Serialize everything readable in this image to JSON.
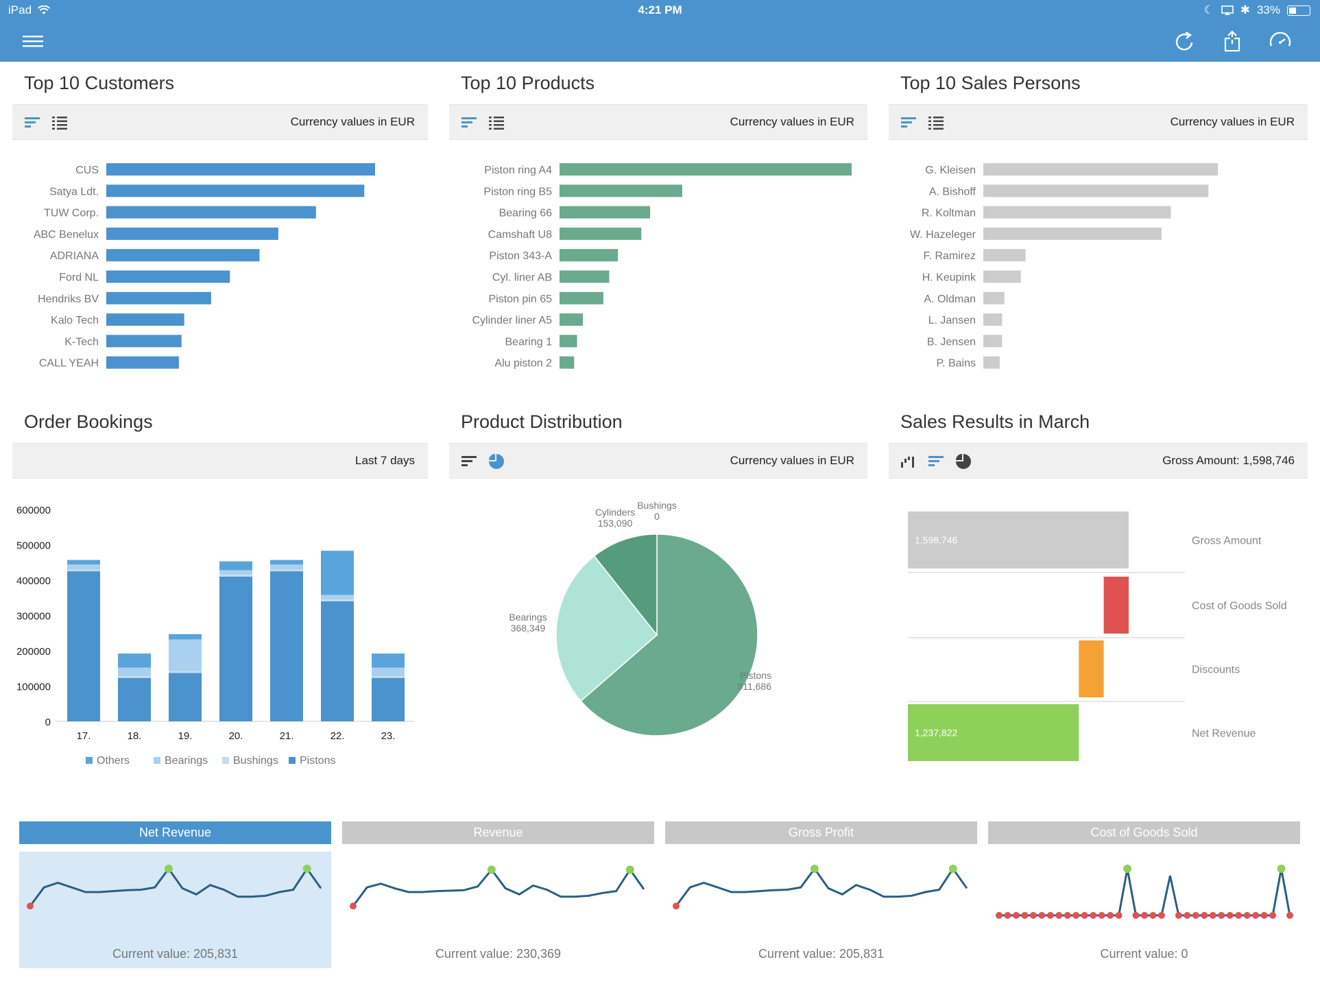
{
  "statusbar": {
    "device": "iPad",
    "time": "4:21 PM",
    "battery": "33%"
  },
  "nav": {
    "menu_icon": "hamburger-menu-icon",
    "refresh_icon": "refresh-icon",
    "share_icon": "share-icon",
    "speed_icon": "speedometer-icon"
  },
  "colors": {
    "blue": "#4a93cf",
    "green": "#6aaa8f",
    "gray": "#cccccc",
    "red": "#e05252",
    "orange": "#f5a133",
    "lime": "#8ed15a"
  },
  "customers": {
    "title": "Top 10 Customers",
    "note": "Currency values in EUR",
    "chart_data": {
      "type": "bar",
      "categories": [
        "CUS",
        "Satya Ldt.",
        "TUW Corp.",
        "ABC Benelux",
        "ADRIANA",
        "Ford NL",
        "Hendriks BV",
        "Kalo Tech",
        "K-Tech",
        "CALL YEAH"
      ],
      "values": [
        100,
        96,
        78,
        64,
        57,
        46,
        39,
        29,
        28,
        27
      ]
    }
  },
  "products": {
    "title": "Top 10 Products",
    "note": "Currency values in EUR",
    "chart_data": {
      "type": "bar",
      "categories": [
        "Piston ring A4",
        "Piston ring B5",
        "Bearing 66",
        "Camshaft U8",
        "Piston 343-A",
        "Cyl. liner AB",
        "Piston pin 65",
        "Cylinder liner A5",
        "Bearing 1",
        "Alu piston 2"
      ],
      "values": [
        100,
        42,
        31,
        28,
        20,
        17,
        15,
        8,
        6,
        5
      ]
    }
  },
  "salespersons": {
    "title": "Top 10 Sales Persons",
    "note": "Currency values in EUR",
    "chart_data": {
      "type": "bar",
      "categories": [
        "G. Kleisen",
        "A. Bishoff",
        "R. Koltman",
        "W. Hazeleger",
        "F. Ramirez",
        "H. Keupink",
        "A. Oldman",
        "L. Jansen",
        "B. Jensen",
        "P. Bains"
      ],
      "values": [
        100,
        96,
        80,
        76,
        18,
        16,
        9,
        8,
        8,
        7
      ]
    }
  },
  "orders": {
    "title": "Order Bookings",
    "note": "Last 7 days",
    "chart_data": {
      "type": "bar",
      "stacked": true,
      "categories": [
        "17.",
        "18.",
        "19.",
        "20.",
        "21.",
        "22.",
        "23."
      ],
      "ylim": [
        0,
        600000
      ],
      "yticks": [
        "600000",
        "500000",
        "400000",
        "300000",
        "200000",
        "100000",
        "0"
      ],
      "series": [
        {
          "name": "Pistons",
          "values": [
            425000,
            123000,
            137000,
            410000,
            425000,
            340000,
            123000
          ],
          "color": "#4a93cf"
        },
        {
          "name": "Bushings",
          "values": [
            5000,
            5000,
            5000,
            5000,
            5000,
            5000,
            5000
          ],
          "color": "#c7dcef"
        },
        {
          "name": "Bearings",
          "values": [
            14000,
            24000,
            90000,
            13000,
            14000,
            13000,
            24000
          ],
          "color": "#a9d1ef"
        },
        {
          "name": "Others",
          "values": [
            13000,
            40000,
            15000,
            25000,
            13000,
            125000,
            40000
          ],
          "color": "#5aa4dc"
        }
      ],
      "legend": [
        "Others",
        "Bearings",
        "Bushings",
        "Pistons"
      ]
    }
  },
  "distribution": {
    "title": "Product Distribution",
    "note": "Currency values in EUR",
    "chart_data": {
      "type": "pie",
      "slices": [
        {
          "name": "Pistons",
          "label": "911,686",
          "value": 911686,
          "color": "#6aaa8f"
        },
        {
          "name": "Bearings",
          "label": "368,349",
          "value": 368349,
          "color": "#ade4d6"
        },
        {
          "name": "Cylinders",
          "label": "153,090",
          "value": 153090,
          "color": "#559c7e"
        },
        {
          "name": "Bushings",
          "label": "0",
          "value": 0,
          "color": "#e6f2ee"
        }
      ]
    }
  },
  "sales": {
    "title": "Sales Results in March",
    "note": "Gross Amount: 1,598,746",
    "chart_data": {
      "type": "bar",
      "categories": [
        "Gross Amount",
        "Cost of Goods Sold",
        "Discounts",
        "Net Revenue"
      ],
      "bars": [
        {
          "label": "1,598,746",
          "start": 0,
          "end": 1598746,
          "color": "#cccccc"
        },
        {
          "label": "",
          "start": 1418000,
          "end": 1598746,
          "color": "#e05252"
        },
        {
          "label": "",
          "start": 1237822,
          "end": 1418000,
          "color": "#f5a133"
        },
        {
          "label": "1,237,822",
          "start": 0,
          "end": 1237822,
          "color": "#8ed15a"
        }
      ],
      "xlim": [
        0,
        1598746
      ]
    }
  },
  "kpis": [
    {
      "title": "Net Revenue",
      "value": "Current value: 205,831",
      "active": true,
      "chart_data": {
        "type": "line",
        "values": [
          20,
          60,
          70,
          60,
          50,
          50,
          52,
          54,
          55,
          60,
          100,
          58,
          45,
          65,
          55,
          40,
          40,
          42,
          50,
          55,
          100,
          58
        ]
      }
    },
    {
      "title": "Revenue",
      "value": "Current value: 230,369",
      "active": false,
      "chart_data": {
        "type": "line",
        "values": [
          20,
          60,
          68,
          58,
          50,
          50,
          52,
          53,
          54,
          62,
          98,
          58,
          45,
          64,
          55,
          40,
          40,
          42,
          48,
          52,
          98,
          56
        ]
      }
    },
    {
      "title": "Gross Profit",
      "value": "Current value: 205,831",
      "active": false,
      "chart_data": {
        "type": "line",
        "values": [
          20,
          60,
          70,
          60,
          50,
          50,
          52,
          54,
          55,
          60,
          100,
          58,
          45,
          65,
          55,
          40,
          40,
          42,
          50,
          55,
          100,
          58
        ]
      }
    },
    {
      "title": "Cost of Goods Sold",
      "value": "Current value: 0",
      "active": false,
      "chart_data": {
        "type": "line",
        "values": [
          0,
          0,
          0,
          0,
          0,
          0,
          0,
          0,
          0,
          0,
          0,
          0,
          0,
          0,
          0,
          100,
          0,
          0,
          0,
          0,
          85,
          0,
          0,
          0,
          0,
          0,
          0,
          0,
          0,
          0,
          0,
          0,
          0,
          100,
          0
        ]
      }
    }
  ]
}
